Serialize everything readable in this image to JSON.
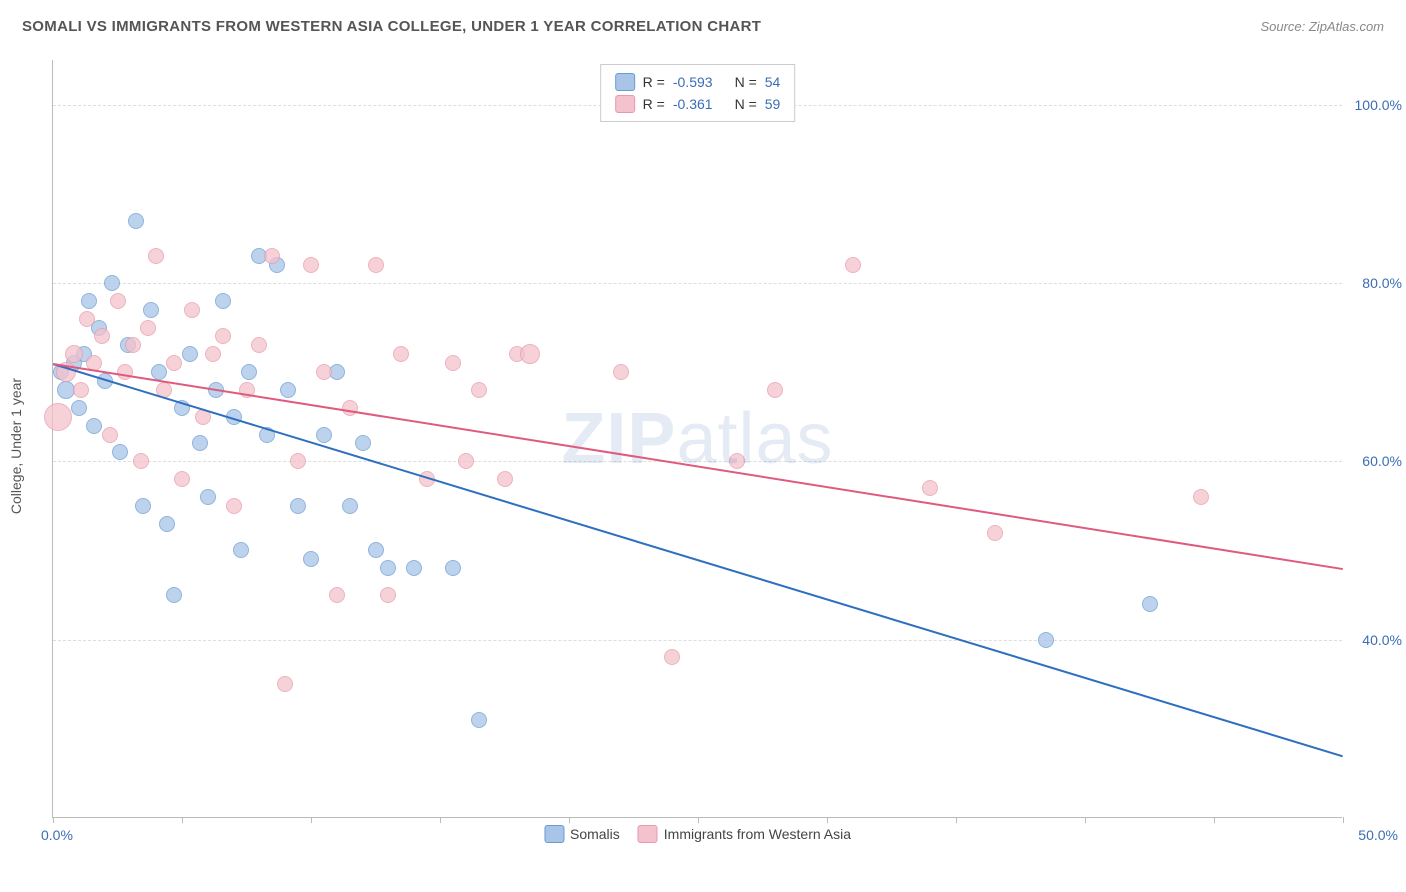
{
  "title": "SOMALI VS IMMIGRANTS FROM WESTERN ASIA COLLEGE, UNDER 1 YEAR CORRELATION CHART",
  "source": "Source: ZipAtlas.com",
  "watermark_bold": "ZIP",
  "watermark_rest": "atlas",
  "y_axis_label": "College, Under 1 year",
  "chart": {
    "type": "scatter",
    "xlim": [
      0,
      50
    ],
    "ylim": [
      20,
      105
    ],
    "x_ticks_at": [
      0,
      5,
      10,
      15,
      20,
      25,
      30,
      35,
      40,
      45,
      50
    ],
    "x_tick_labels": {
      "0": "0.0%",
      "50": "50.0%"
    },
    "y_grid": [
      40,
      60,
      80,
      100
    ],
    "y_tick_labels": {
      "40": "40.0%",
      "60": "60.0%",
      "80": "80.0%",
      "100": "100.0%"
    },
    "background_color": "#ffffff",
    "grid_color": "#dddddd",
    "axis_color": "#bbbbbb",
    "tick_label_color": "#3b6db5",
    "series": [
      {
        "name": "Somalis",
        "fill": "#a8c5e8",
        "stroke": "#6a9bd1",
        "line_color": "#2f6fc0",
        "R": "-0.593",
        "N": "54",
        "trend": {
          "x1": 0,
          "y1": 71,
          "x2": 50,
          "y2": 27
        },
        "points": [
          {
            "x": 0.3,
            "y": 70,
            "r": 8
          },
          {
            "x": 0.5,
            "y": 68,
            "r": 9
          },
          {
            "x": 0.8,
            "y": 71,
            "r": 8
          },
          {
            "x": 1.0,
            "y": 66,
            "r": 8
          },
          {
            "x": 1.2,
            "y": 72,
            "r": 8
          },
          {
            "x": 1.4,
            "y": 78,
            "r": 8
          },
          {
            "x": 1.6,
            "y": 64,
            "r": 8
          },
          {
            "x": 1.8,
            "y": 75,
            "r": 8
          },
          {
            "x": 2.0,
            "y": 69,
            "r": 8
          },
          {
            "x": 2.3,
            "y": 80,
            "r": 8
          },
          {
            "x": 2.6,
            "y": 61,
            "r": 8
          },
          {
            "x": 2.9,
            "y": 73,
            "r": 8
          },
          {
            "x": 3.2,
            "y": 87,
            "r": 8
          },
          {
            "x": 3.5,
            "y": 55,
            "r": 8
          },
          {
            "x": 3.8,
            "y": 77,
            "r": 8
          },
          {
            "x": 4.1,
            "y": 70,
            "r": 8
          },
          {
            "x": 4.4,
            "y": 53,
            "r": 8
          },
          {
            "x": 4.7,
            "y": 45,
            "r": 8
          },
          {
            "x": 5.0,
            "y": 66,
            "r": 8
          },
          {
            "x": 5.3,
            "y": 72,
            "r": 8
          },
          {
            "x": 5.7,
            "y": 62,
            "r": 8
          },
          {
            "x": 6.0,
            "y": 56,
            "r": 8
          },
          {
            "x": 6.3,
            "y": 68,
            "r": 8
          },
          {
            "x": 6.6,
            "y": 78,
            "r": 8
          },
          {
            "x": 7.0,
            "y": 65,
            "r": 8
          },
          {
            "x": 7.3,
            "y": 50,
            "r": 8
          },
          {
            "x": 7.6,
            "y": 70,
            "r": 8
          },
          {
            "x": 8.0,
            "y": 83,
            "r": 8
          },
          {
            "x": 8.3,
            "y": 63,
            "r": 8
          },
          {
            "x": 8.7,
            "y": 82,
            "r": 8
          },
          {
            "x": 9.1,
            "y": 68,
            "r": 8
          },
          {
            "x": 9.5,
            "y": 55,
            "r": 8
          },
          {
            "x": 10.0,
            "y": 49,
            "r": 8
          },
          {
            "x": 10.5,
            "y": 63,
            "r": 8
          },
          {
            "x": 11.0,
            "y": 70,
            "r": 8
          },
          {
            "x": 11.5,
            "y": 55,
            "r": 8
          },
          {
            "x": 12.0,
            "y": 62,
            "r": 8
          },
          {
            "x": 12.5,
            "y": 50,
            "r": 8
          },
          {
            "x": 13.0,
            "y": 48,
            "r": 8
          },
          {
            "x": 14.0,
            "y": 48,
            "r": 8
          },
          {
            "x": 15.5,
            "y": 48,
            "r": 8
          },
          {
            "x": 16.5,
            "y": 31,
            "r": 8
          },
          {
            "x": 38.5,
            "y": 40,
            "r": 8
          },
          {
            "x": 42.5,
            "y": 44,
            "r": 8
          }
        ]
      },
      {
        "name": "Immigrants from Western Asia",
        "fill": "#f4c2cc",
        "stroke": "#e89aab",
        "line_color": "#e05a7d",
        "R": "-0.361",
        "N": "59",
        "trend": {
          "x1": 0,
          "y1": 71,
          "x2": 50,
          "y2": 48
        },
        "points": [
          {
            "x": 0.2,
            "y": 65,
            "r": 14
          },
          {
            "x": 0.5,
            "y": 70,
            "r": 10
          },
          {
            "x": 0.8,
            "y": 72,
            "r": 9
          },
          {
            "x": 1.1,
            "y": 68,
            "r": 8
          },
          {
            "x": 1.3,
            "y": 76,
            "r": 8
          },
          {
            "x": 1.6,
            "y": 71,
            "r": 8
          },
          {
            "x": 1.9,
            "y": 74,
            "r": 8
          },
          {
            "x": 2.2,
            "y": 63,
            "r": 8
          },
          {
            "x": 2.5,
            "y": 78,
            "r": 8
          },
          {
            "x": 2.8,
            "y": 70,
            "r": 8
          },
          {
            "x": 3.1,
            "y": 73,
            "r": 8
          },
          {
            "x": 3.4,
            "y": 60,
            "r": 8
          },
          {
            "x": 3.7,
            "y": 75,
            "r": 8
          },
          {
            "x": 4.0,
            "y": 83,
            "r": 8
          },
          {
            "x": 4.3,
            "y": 68,
            "r": 8
          },
          {
            "x": 4.7,
            "y": 71,
            "r": 8
          },
          {
            "x": 5.0,
            "y": 58,
            "r": 8
          },
          {
            "x": 5.4,
            "y": 77,
            "r": 8
          },
          {
            "x": 5.8,
            "y": 65,
            "r": 8
          },
          {
            "x": 6.2,
            "y": 72,
            "r": 8
          },
          {
            "x": 6.6,
            "y": 74,
            "r": 8
          },
          {
            "x": 7.0,
            "y": 55,
            "r": 8
          },
          {
            "x": 7.5,
            "y": 68,
            "r": 8
          },
          {
            "x": 8.0,
            "y": 73,
            "r": 8
          },
          {
            "x": 8.5,
            "y": 83,
            "r": 8
          },
          {
            "x": 9.0,
            "y": 35,
            "r": 8
          },
          {
            "x": 9.5,
            "y": 60,
            "r": 8
          },
          {
            "x": 10.0,
            "y": 82,
            "r": 8
          },
          {
            "x": 10.5,
            "y": 70,
            "r": 8
          },
          {
            "x": 11.0,
            "y": 45,
            "r": 8
          },
          {
            "x": 11.5,
            "y": 66,
            "r": 8
          },
          {
            "x": 12.5,
            "y": 82,
            "r": 8
          },
          {
            "x": 13.0,
            "y": 45,
            "r": 8
          },
          {
            "x": 13.5,
            "y": 72,
            "r": 8
          },
          {
            "x": 14.5,
            "y": 58,
            "r": 8
          },
          {
            "x": 15.5,
            "y": 71,
            "r": 8
          },
          {
            "x": 16.0,
            "y": 60,
            "r": 8
          },
          {
            "x": 16.5,
            "y": 68,
            "r": 8
          },
          {
            "x": 17.5,
            "y": 58,
            "r": 8
          },
          {
            "x": 18.0,
            "y": 72,
            "r": 8
          },
          {
            "x": 18.5,
            "y": 72,
            "r": 10
          },
          {
            "x": 22.0,
            "y": 70,
            "r": 8
          },
          {
            "x": 24.0,
            "y": 38,
            "r": 8
          },
          {
            "x": 26.5,
            "y": 60,
            "r": 8
          },
          {
            "x": 28.0,
            "y": 68,
            "r": 8
          },
          {
            "x": 31.0,
            "y": 82,
            "r": 8
          },
          {
            "x": 34.0,
            "y": 57,
            "r": 8
          },
          {
            "x": 36.5,
            "y": 52,
            "r": 8
          },
          {
            "x": 44.5,
            "y": 56,
            "r": 8
          }
        ]
      }
    ]
  }
}
